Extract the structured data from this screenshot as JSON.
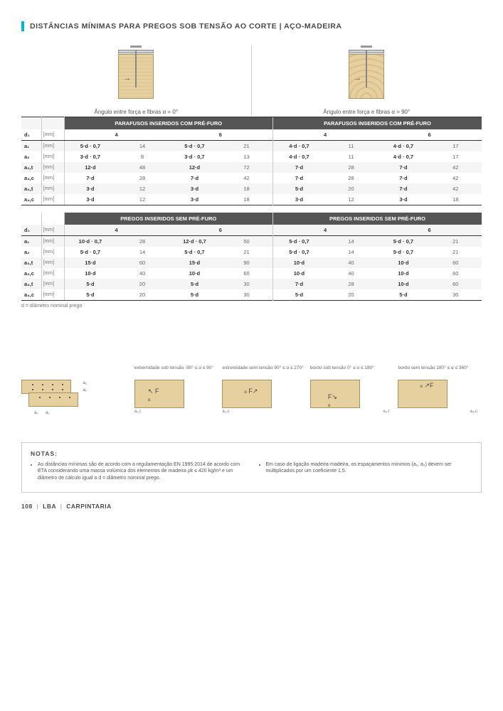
{
  "title": "DISTÂNCIAS MÍNIMAS PARA PREGOS SOB TENSÃO AO CORTE | AÇO-MADEIRA",
  "angle_labels": {
    "left": "Ângulo entre força e fibras α = 0°",
    "right": "Ângulo entre força e fibras α = 90°"
  },
  "section_headers": {
    "prefuro": "PARAFUSOS INSERIDOS COM PRÉ-FURO",
    "semprefuro": "PREGOS INSERIDOS SEM PRÉ-FURO"
  },
  "col_d_header": "d₁",
  "col_d_unit": "[mm]",
  "col_nums": [
    "4",
    "6",
    "4",
    "6"
  ],
  "table1": [
    {
      "label": "a₁",
      "unit": "[mm]",
      "c": [
        "5·d · 0,7",
        "14",
        "5·d · 0,7",
        "21",
        "4·d · 0,7",
        "11",
        "4·d · 0,7",
        "17"
      ]
    },
    {
      "label": "a₂",
      "unit": "[mm]",
      "c": [
        "3·d · 0,7",
        "8",
        "3·d · 0,7",
        "13",
        "4·d · 0,7",
        "11",
        "4·d · 0,7",
        "17"
      ]
    },
    {
      "label": "a₃,t",
      "unit": "[mm]",
      "c": [
        "12·d",
        "48",
        "12·d",
        "72",
        "7·d",
        "28",
        "7·d",
        "42"
      ]
    },
    {
      "label": "a₃,c",
      "unit": "[mm]",
      "c": [
        "7·d",
        "28",
        "7·d",
        "42",
        "7·d",
        "28",
        "7·d",
        "42"
      ]
    },
    {
      "label": "a₄,t",
      "unit": "[mm]",
      "c": [
        "3·d",
        "12",
        "3·d",
        "18",
        "5·d",
        "20",
        "7·d",
        "42"
      ]
    },
    {
      "label": "a₄,c",
      "unit": "[mm]",
      "c": [
        "3·d",
        "12",
        "3·d",
        "18",
        "3·d",
        "12",
        "3·d",
        "18"
      ]
    }
  ],
  "table2": [
    {
      "label": "a₁",
      "unit": "[mm]",
      "c": [
        "10·d · 0,7",
        "28",
        "12·d · 0,7",
        "50",
        "5·d · 0,7",
        "14",
        "5·d · 0,7",
        "21"
      ]
    },
    {
      "label": "a₂",
      "unit": "[mm]",
      "c": [
        "5·d · 0,7",
        "14",
        "5·d · 0,7",
        "21",
        "5·d · 0,7",
        "14",
        "5·d · 0,7",
        "21"
      ]
    },
    {
      "label": "a₃,t",
      "unit": "[mm]",
      "c": [
        "15·d",
        "60",
        "15·d",
        "90",
        "10·d",
        "40",
        "10·d",
        "60"
      ]
    },
    {
      "label": "a₃,c",
      "unit": "[mm]",
      "c": [
        "10·d",
        "40",
        "10·d",
        "60",
        "10·d",
        "40",
        "10·d",
        "60"
      ]
    },
    {
      "label": "a₄,t",
      "unit": "[mm]",
      "c": [
        "5·d",
        "20",
        "5·d",
        "30",
        "7·d",
        "28",
        "10·d",
        "60"
      ]
    },
    {
      "label": "a₄,c",
      "unit": "[mm]",
      "c": [
        "5·d",
        "20",
        "5·d",
        "30",
        "5·d",
        "20",
        "5·d",
        "30"
      ]
    }
  ],
  "footnote": "d = diâmetro nominal prego",
  "legend": [
    {
      "title": "",
      "sub_r": [
        "a₂",
        "a₂"
      ],
      "sub_b": [
        "a₁",
        "a₁"
      ]
    },
    {
      "title": "extremidade sob tensão\n-90° ≤ α ≤ 90°",
      "sub": "a₃,t"
    },
    {
      "title": "extremidade sem tensão\n90° ≤ α ≤ 270°",
      "sub": "a₃,c"
    },
    {
      "title": "bordo sob tensão\n0° ≤ α ≤ 180°",
      "sub": "a₄,t"
    },
    {
      "title": "bordo sem tensão\n180° ≤ α ≤ 360°",
      "sub": "a₄,c"
    }
  ],
  "notes": {
    "title": "NOTAS:",
    "left": "As distâncias mínimas são de acordo com a regulamentação EN 1995:2014 de acordo com ETA considerando uma massa volúmica dos elementos de madeira ρk ≤ 420 kg/m³ e um diâmetro de cálculo igual a d = diâmetro nominal prego.",
    "right": "Em caso de ligação madeira-madeira, os espaçamentos mínimos (a₁, a₂) devem ser multiplicados por um coeficiente 1,5."
  },
  "footer": {
    "page": "108",
    "brand": "LBA",
    "section": "CARPINTARIA"
  }
}
